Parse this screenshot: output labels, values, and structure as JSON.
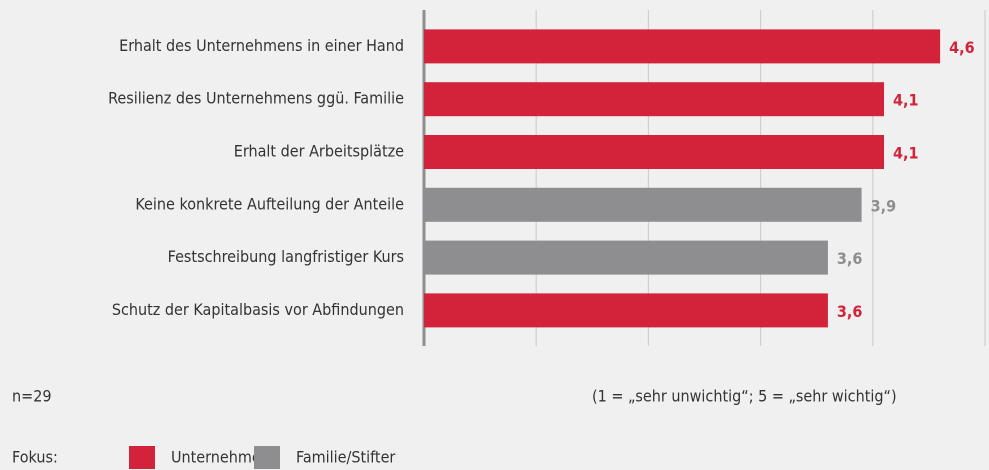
{
  "chart_data": {
    "type": "barh",
    "categories": [
      "Erhalt des Unternehmens in einer Hand",
      "Resilienz des Unternehmens ggü. Familie",
      "Erhalt der Arbeitsplätze",
      "Keine konkrete Aufteilung der Anteile",
      "Festschreibung langfristiger Kurs",
      "Schutz der Kapitalbasis vor Abfindungen"
    ],
    "values": [
      4.6,
      4.1,
      4.1,
      3.9,
      3.6,
      3.6
    ],
    "value_labels": [
      "4,6",
      "4,1",
      "4,1",
      "3,9",
      "3,6",
      "3,6"
    ],
    "bar_groups": [
      0,
      0,
      0,
      1,
      1,
      0
    ],
    "xlim": [
      0,
      5
    ],
    "xticks": [
      0,
      1,
      2,
      3,
      4,
      5
    ],
    "grid": true,
    "legend": {
      "title": "Fokus:",
      "items": [
        {
          "name": "Unternehmen",
          "color": "#d2233b"
        },
        {
          "name": "Familie/Stifter",
          "color": "#8e8e90"
        }
      ]
    },
    "notes": [
      "n=29",
      "(1 = „sehr unwichtig“; 5 = „sehr wichtig“)"
    ]
  }
}
